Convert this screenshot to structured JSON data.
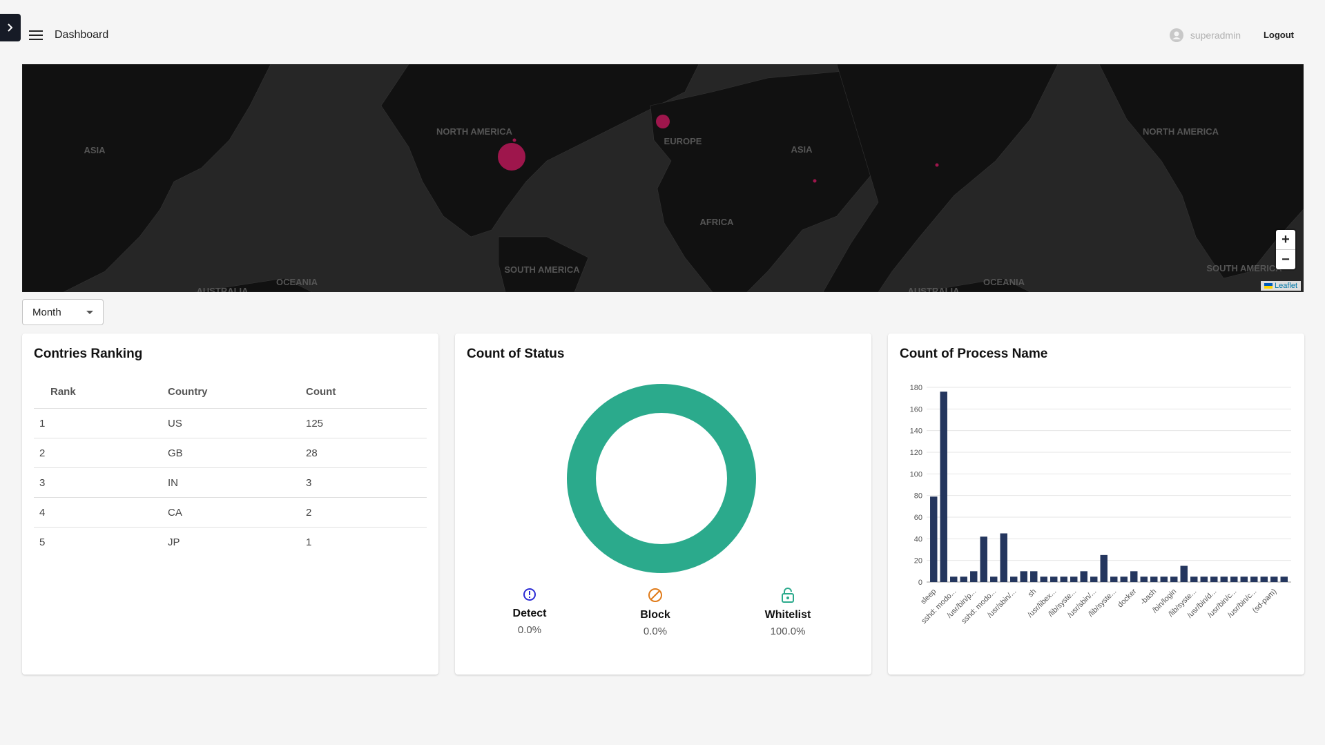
{
  "topbar": {
    "title": "Dashboard",
    "username": "superadmin",
    "logout_label": "Logout"
  },
  "map": {
    "labels": [
      "ASIA",
      "NORTH AMERICA",
      "EUROPE",
      "ASIA",
      "NORTH AMERICA",
      "AFRICA",
      "SOUTH AMERICA",
      "SOUTH AMERICA",
      "OCEANIA",
      "OCEANIA",
      "AUSTRALIA",
      "AUSTRALIA"
    ],
    "attribution": "Leaflet",
    "zoom_in": "+",
    "zoom_out": "−",
    "marker_color": "#c2185b"
  },
  "period_select": {
    "value": "Month"
  },
  "countries": {
    "title": "Contries Ranking",
    "headers": [
      "Rank",
      "Country",
      "Count"
    ],
    "rows": [
      [
        "1",
        "US",
        "125"
      ],
      [
        "2",
        "GB",
        "28"
      ],
      [
        "3",
        "IN",
        "3"
      ],
      [
        "4",
        "CA",
        "2"
      ],
      [
        "5",
        "JP",
        "1"
      ]
    ]
  },
  "status": {
    "title": "Count of Status",
    "ring_color": "#2baa8c",
    "items": [
      {
        "label": "Detect",
        "pct": "0.0%",
        "icon": "alert-circle-icon",
        "color": "#2a2ad4"
      },
      {
        "label": "Block",
        "pct": "0.0%",
        "icon": "block-icon",
        "color": "#e07b1a"
      },
      {
        "label": "Whitelist",
        "pct": "100.0%",
        "icon": "unlock-icon",
        "color": "#2baa8c"
      }
    ]
  },
  "process": {
    "title": "Count of Process Name",
    "bar_color": "#24365e",
    "chart_data": {
      "type": "bar",
      "ylim": [
        0,
        180
      ],
      "yticks": [
        0,
        20,
        40,
        60,
        80,
        100,
        120,
        140,
        160,
        180
      ],
      "tick_labels": [
        "sleep",
        "sshd: modo...",
        "/usr/bin/p...",
        "sshd: modo...",
        "/usr/sbin/...",
        "sh",
        "/usr/libex...",
        "/lib/syste...",
        "/usr/sbin/...",
        "/lib/syste...",
        "docker",
        "-bash",
        "/bin/login",
        "/lib/syste...",
        "/usr/bin/d...",
        "/usr/bin/c...",
        "/usr/bin/c...",
        "(sd-pam)"
      ],
      "values": [
        79,
        176,
        5,
        5,
        10,
        42,
        5,
        45,
        5,
        10,
        10,
        5,
        5,
        5,
        5,
        10,
        5,
        25,
        5,
        5,
        10,
        5,
        5,
        5,
        5,
        15,
        5,
        5,
        5,
        5,
        5,
        5,
        5,
        5,
        5,
        5
      ]
    }
  }
}
